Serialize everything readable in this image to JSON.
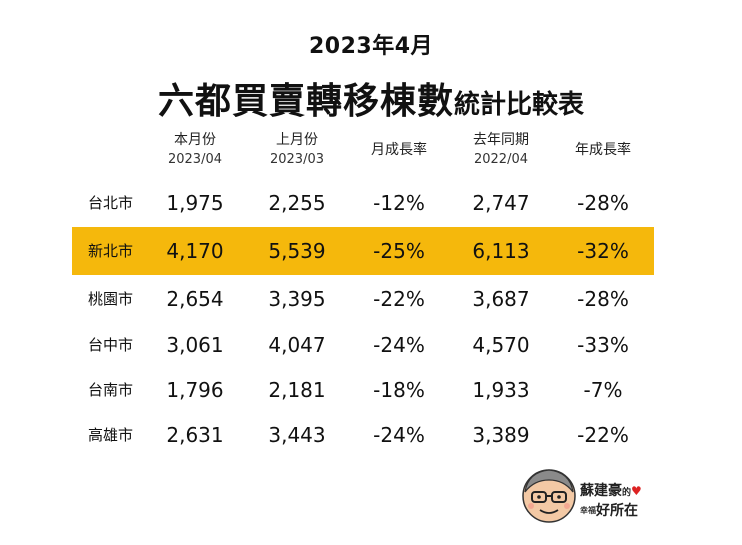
{
  "title": {
    "date": "2023年4月",
    "main_big": "六都買賣轉移棟數",
    "main_small": "統計比較表"
  },
  "columns": [
    {
      "label": "本月份",
      "sub": "2023/04"
    },
    {
      "label": "上月份",
      "sub": "2023/03"
    },
    {
      "label": "月成長率",
      "sub": ""
    },
    {
      "label": "去年同期",
      "sub": "2022/04"
    },
    {
      "label": "年成長率",
      "sub": ""
    }
  ],
  "rows": [
    {
      "city": "台北市",
      "current": "1,975",
      "last_month": "2,255",
      "mom": "-12%",
      "last_year": "2,747",
      "yoy": "-28%",
      "highlight": false
    },
    {
      "city": "新北市",
      "current": "4,170",
      "last_month": "5,539",
      "mom": "-25%",
      "last_year": "6,113",
      "yoy": "-32%",
      "highlight": true
    },
    {
      "city": "桃園市",
      "current": "2,654",
      "last_month": "3,395",
      "mom": "-22%",
      "last_year": "3,687",
      "yoy": "-28%",
      "highlight": false
    },
    {
      "city": "台中市",
      "current": "3,061",
      "last_month": "4,047",
      "mom": "-24%",
      "last_year": "4,570",
      "yoy": "-33%",
      "highlight": false
    },
    {
      "city": "台南市",
      "current": "1,796",
      "last_month": "2,181",
      "mom": "-18%",
      "last_year": "1,933",
      "yoy": "-7%",
      "highlight": false
    },
    {
      "city": "高雄市",
      "current": "2,631",
      "last_month": "3,443",
      "mom": "-24%",
      "last_year": "3,389",
      "yoy": "-22%",
      "highlight": false
    }
  ],
  "highlight_color": "#f5b80c",
  "logo": {
    "name": "蘇建豪",
    "name_suffix": "的",
    "slogan_small_1": "幸福",
    "slogan_small_2": "",
    "slogan": "好所在"
  }
}
